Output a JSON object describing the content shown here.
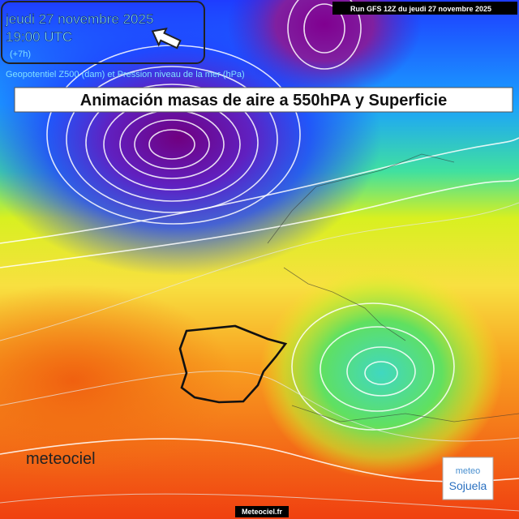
{
  "header": {
    "date": "jeudi 27 novembre 2025",
    "time": "19:00 UTC",
    "offset": "(+7h)",
    "run": "Run GFS 12Z du jeudi 27 novembre 2025",
    "subtitle": "Geopotentiel Z500 (dam) et Pression niveau de la mer (hPa)"
  },
  "banner": {
    "title": "Animación masas de aire a 550hPA y Superficie"
  },
  "watermark": "meteociel",
  "footer": "Meteociel.fr",
  "logo": {
    "line1": "meteo",
    "line2": "Sojuela"
  }
}
